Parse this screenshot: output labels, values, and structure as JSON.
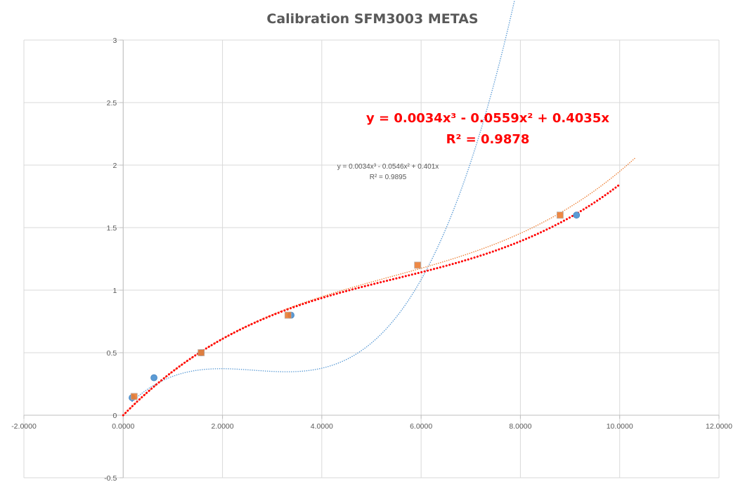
{
  "chart_data": {
    "type": "scatter",
    "title": "Calibration SFM3003 METAS",
    "xlabel": "",
    "ylabel": "",
    "xlim": [
      -2,
      12
    ],
    "ylim": [
      -0.5,
      3
    ],
    "x_ticks": [
      -2,
      0,
      2,
      4,
      6,
      8,
      10,
      12
    ],
    "y_ticks": [
      -0.5,
      0,
      0.5,
      1,
      1.5,
      2,
      2.5,
      3
    ],
    "x_tick_labels": [
      "-2.0000",
      "0.0000",
      "2.0000",
      "4.0000",
      "6.0000",
      "8.0000",
      "10.0000",
      "12.0000"
    ],
    "y_tick_labels": [
      "-0.5",
      "0",
      "0.5",
      "1",
      "1.5",
      "2",
      "2.5",
      "3"
    ],
    "grid": true,
    "series": [
      {
        "color": "#5b9bd5",
        "marker": "circle",
        "points": [
          [
            0.18,
            0.14
          ],
          [
            0.62,
            0.3
          ],
          [
            1.57,
            0.5
          ],
          [
            3.38,
            0.8
          ],
          [
            9.13,
            1.6
          ]
        ],
        "trendline": {
          "x_start": 0.18,
          "x_end": 10.4,
          "coeffs": [
            0.04,
            0.42,
            -0.17,
            0.0215
          ]
        }
      },
      {
        "color": "#ed7d31",
        "marker": "square",
        "points": [
          [
            0.22,
            0.15
          ],
          [
            1.57,
            0.5
          ],
          [
            3.32,
            0.8
          ],
          [
            5.93,
            1.2
          ],
          [
            8.8,
            1.6
          ]
        ],
        "trendline": {
          "x_start": 0,
          "x_end": 10.3,
          "coeffs": [
            0,
            0.401,
            -0.0546,
            0.0034
          ]
        }
      },
      {
        "color": "#ff0000",
        "marker": "none",
        "points": [],
        "trendline": {
          "x_start": 0,
          "x_end": 10.0,
          "coeffs": [
            0,
            0.4035,
            -0.0559,
            0.0034
          ]
        }
      }
    ],
    "annotations": {
      "small_eq": "y = 0.0034x³ - 0.0546x² + 0.401x",
      "small_r2": "R² = 0.9895",
      "big_eq": "y = 0.0034x³ - 0.0559x² + 0.4035x",
      "big_r2": "R² = 0.9878"
    }
  }
}
